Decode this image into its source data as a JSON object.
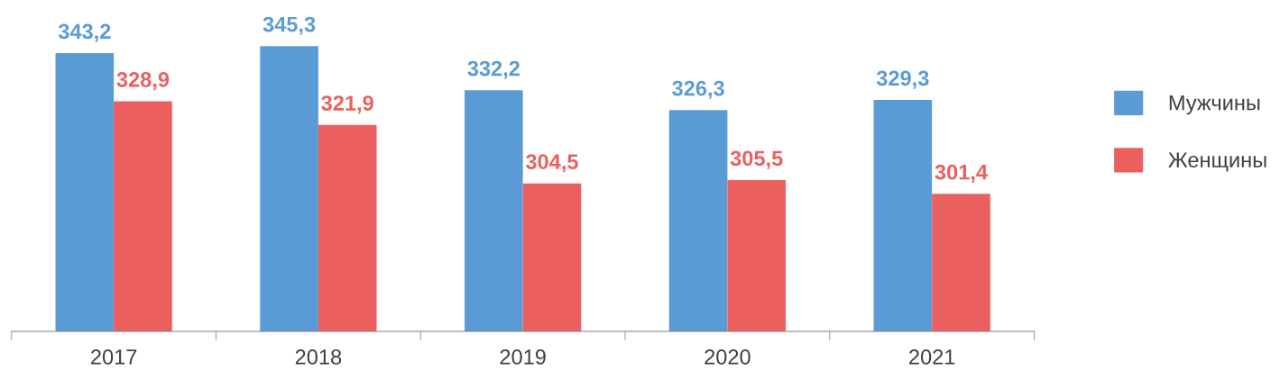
{
  "chart_data": {
    "type": "bar",
    "categories": [
      "2017",
      "2018",
      "2019",
      "2020",
      "2021"
    ],
    "series": [
      {
        "name": "Мужчины",
        "color": "#5b9bd5",
        "values": [
          343.2,
          345.3,
          332.2,
          326.3,
          329.3
        ],
        "value_labels": [
          "343,2",
          "345,3",
          "332,2",
          "326,3",
          "329,3"
        ]
      },
      {
        "name": "Женщины",
        "color": "#eb5f5f",
        "values": [
          328.9,
          321.9,
          304.5,
          305.5,
          301.4
        ],
        "value_labels": [
          "328,9",
          "321,9",
          "304,5",
          "305,5",
          "301,4"
        ]
      }
    ],
    "tick_labels": "x",
    "grid": false,
    "legend": "right"
  }
}
